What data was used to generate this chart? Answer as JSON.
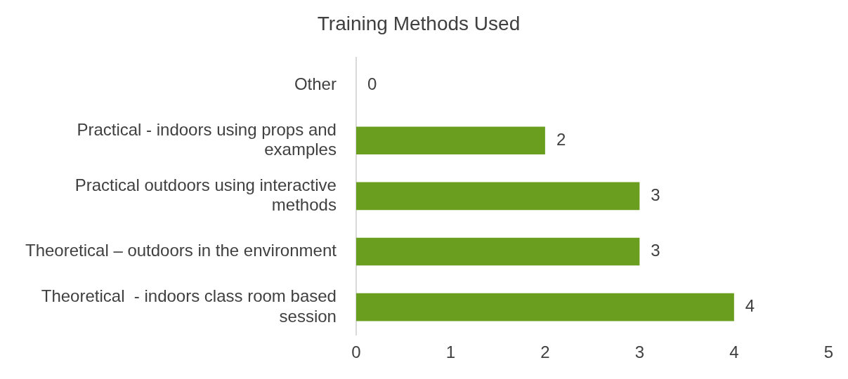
{
  "chart_data": {
    "type": "bar",
    "orientation": "horizontal",
    "title": "Training Methods Used",
    "categories": [
      "Other",
      "Practical - indoors using props and examples",
      "Practical outdoors using interactive methods",
      "Theoretical – outdoors in the environment",
      "Theoretical  - indoors class room based session"
    ],
    "values": [
      0,
      2,
      3,
      3,
      4
    ],
    "color": "#6a9e1f",
    "xlim": [
      0,
      5
    ],
    "xticks": [
      0,
      1,
      2,
      3,
      4,
      5
    ],
    "grid": false,
    "legend": false,
    "data_labels": true
  }
}
